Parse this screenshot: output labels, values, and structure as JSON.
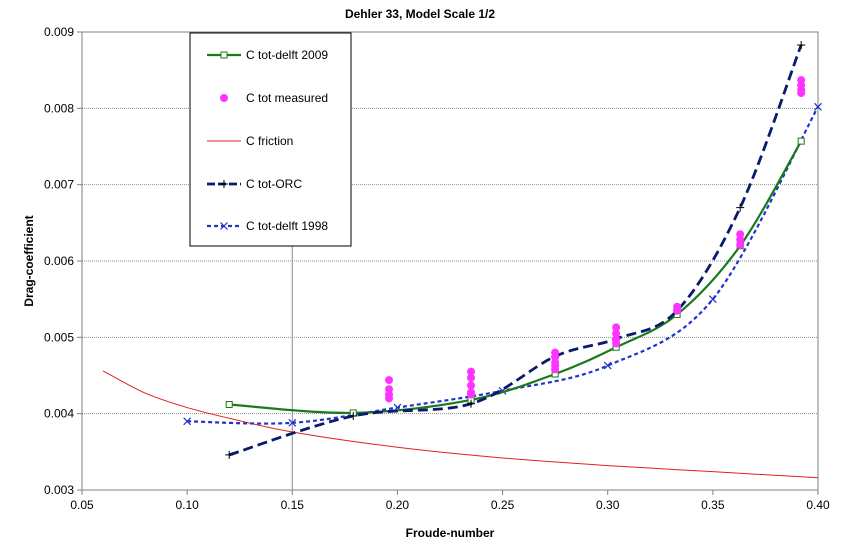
{
  "chart_data": {
    "type": "line",
    "title": "Dehler 33, Model Scale 1/2",
    "xlabel": "Froude-number",
    "ylabel": "Drag-coefficient",
    "xlim": [
      0.05,
      0.4
    ],
    "ylim": [
      0.003,
      0.009
    ],
    "xticks": [
      "0.05",
      "0.10",
      "0.15",
      "0.20",
      "0.25",
      "0.30",
      "0.35",
      "0.40"
    ],
    "yticks": [
      "0.003",
      "0.004",
      "0.005",
      "0.006",
      "0.007",
      "0.008",
      "0.009"
    ],
    "xtick_values": [
      0.05,
      0.1,
      0.15,
      0.2,
      0.25,
      0.3,
      0.35,
      0.4
    ],
    "ytick_values": [
      0.003,
      0.004,
      0.005,
      0.006,
      0.007,
      0.008,
      0.009
    ],
    "legend_position": "top-left",
    "vertical_reference_line_x": 0.15,
    "series": [
      {
        "name": "C tot-delft 2009",
        "style": "line-square",
        "color": "#1a7a1a",
        "x": [
          0.12,
          0.179,
          0.235,
          0.275,
          0.304,
          0.333,
          0.363,
          0.392
        ],
        "y": [
          0.00412,
          0.00401,
          0.00418,
          0.00452,
          0.00487,
          0.0053,
          0.0062,
          0.00757
        ]
      },
      {
        "name": "C tot measured",
        "style": "markers",
        "color": "#ff33ff",
        "x": [
          0.196,
          0.196,
          0.196,
          0.196,
          0.235,
          0.235,
          0.235,
          0.235,
          0.235,
          0.275,
          0.275,
          0.275,
          0.275,
          0.275,
          0.304,
          0.304,
          0.304,
          0.304,
          0.333,
          0.333,
          0.363,
          0.363,
          0.363,
          0.392,
          0.392,
          0.392,
          0.392
        ],
        "y": [
          0.00444,
          0.00432,
          0.00425,
          0.0042,
          0.00455,
          0.00447,
          0.00437,
          0.00428,
          0.00425,
          0.0048,
          0.00474,
          0.00467,
          0.00463,
          0.00458,
          0.00513,
          0.00505,
          0.00497,
          0.00492,
          0.0054,
          0.00535,
          0.00635,
          0.00628,
          0.00621,
          0.00837,
          0.0083,
          0.00824,
          0.0082
        ]
      },
      {
        "name": "C friction",
        "style": "thin-line",
        "color": "#e02020",
        "x": [
          0.06,
          0.08,
          0.1,
          0.12,
          0.15,
          0.2,
          0.25,
          0.3,
          0.35,
          0.4
        ],
        "y": [
          0.00456,
          0.00427,
          0.00408,
          0.00394,
          0.00376,
          0.00356,
          0.00342,
          0.00332,
          0.00324,
          0.00316
        ]
      },
      {
        "name": "C tot-ORC",
        "style": "dashed-plus",
        "color": "#0a1a6e",
        "x": [
          0.12,
          0.179,
          0.235,
          0.275,
          0.304,
          0.333,
          0.363,
          0.392
        ],
        "y": [
          0.00346,
          0.00397,
          0.00413,
          0.00475,
          0.00498,
          0.00535,
          0.0067,
          0.00883
        ]
      },
      {
        "name": "C tot-delft 1998",
        "style": "dotted-x",
        "color": "#2233cc",
        "x": [
          0.1,
          0.15,
          0.2,
          0.25,
          0.3,
          0.35,
          0.4
        ],
        "y": [
          0.0039,
          0.00388,
          0.00408,
          0.0043,
          0.00463,
          0.0055,
          0.00802
        ]
      }
    ]
  }
}
